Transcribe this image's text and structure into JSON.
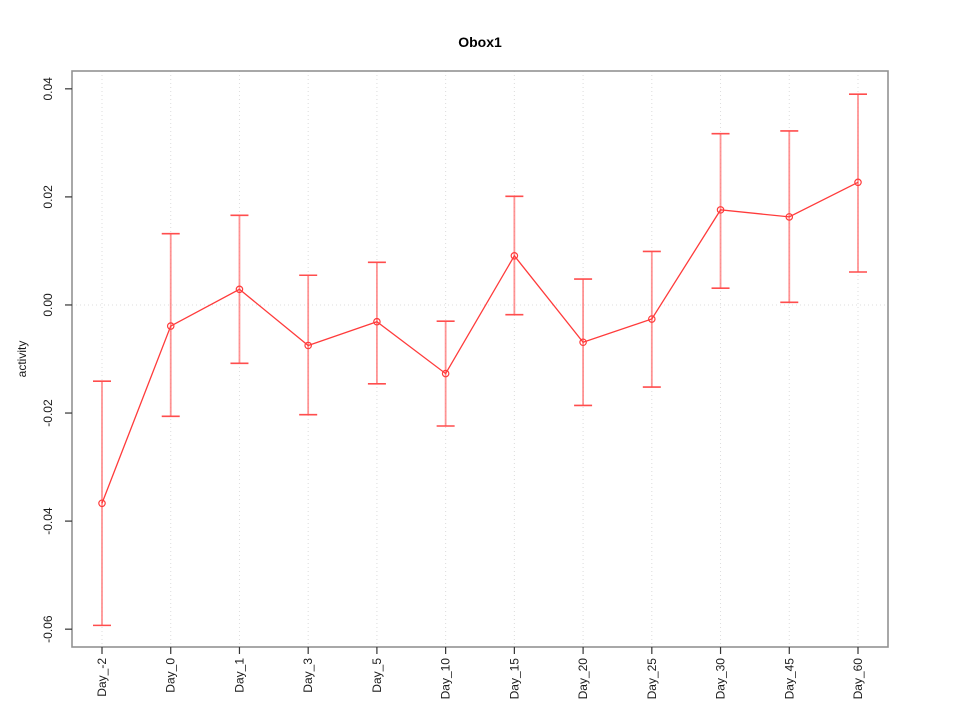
{
  "title": "Obox1",
  "chart_data": {
    "type": "line",
    "title": "Obox1",
    "xlabel": "",
    "ylabel": "activity",
    "legend": "none",
    "grid": {
      "vertical": "dotted at each category",
      "horizontal": "dotted at 0.00 only",
      "color": "#dcdcdc"
    },
    "tick_label_rotation": "vertical",
    "categories": [
      "Day_-2",
      "Day_0",
      "Day_1",
      "Day_3",
      "Day_5",
      "Day_10",
      "Day_15",
      "Day_20",
      "Day_25",
      "Day_30",
      "Day_45",
      "Day_60"
    ],
    "yticks": [
      0.04,
      0.02,
      0.0,
      -0.02,
      -0.04,
      -0.06
    ],
    "ylim": [
      -0.0633,
      0.0433
    ],
    "series": [
      {
        "name": "activity",
        "marker": "open-circle",
        "values": [
          -0.0367,
          -0.0039,
          0.0029,
          -0.0075,
          -0.0031,
          -0.0127,
          0.0091,
          -0.0069,
          -0.0026,
          0.0176,
          0.0163,
          0.0227
        ],
        "upper": [
          -0.0141,
          0.0132,
          0.0166,
          0.0055,
          0.0079,
          -0.003,
          0.0201,
          0.0048,
          0.0099,
          0.0317,
          0.0322,
          0.039
        ],
        "lower": [
          -0.0593,
          -0.0206,
          -0.0108,
          -0.0203,
          -0.0146,
          -0.0224,
          -0.0018,
          -0.0186,
          -0.0152,
          0.0031,
          0.0005,
          0.0061
        ]
      }
    ],
    "colors": {
      "line": "#ff3b3b",
      "marker": "#ff3b3b",
      "errorbar_stem": "#ff7a7a",
      "errorbar_cap": "#ff4d4d",
      "grid": "#dcdcdc",
      "frame": "#929292",
      "tick": "#333333",
      "text": "#1a1a1a"
    }
  }
}
